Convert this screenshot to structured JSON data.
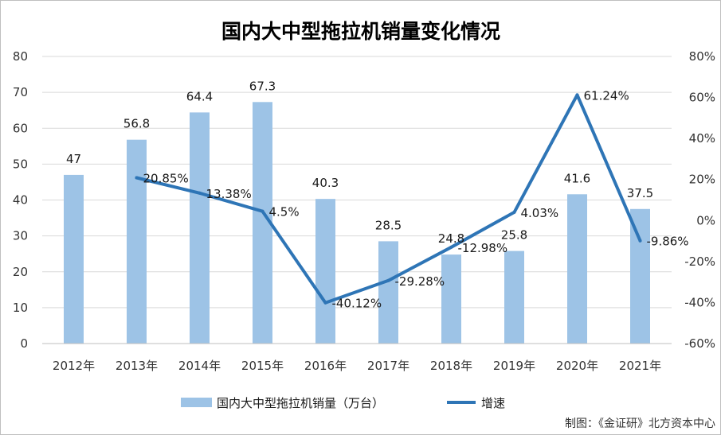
{
  "chart_data": {
    "type": "bar",
    "title": "国内大中型拖拉机销量变化情况",
    "categories": [
      "2012年",
      "2013年",
      "2014年",
      "2015年",
      "2016年",
      "2017年",
      "2018年",
      "2019年",
      "2020年",
      "2021年"
    ],
    "series": [
      {
        "name": "国内大中型拖拉机销量（万台）",
        "type": "bar",
        "axis": "left",
        "values": [
          47,
          56.8,
          64.4,
          67.3,
          40.3,
          28.5,
          24.8,
          25.8,
          41.6,
          37.5
        ],
        "labels": [
          "47",
          "56.8",
          "64.4",
          "67.3",
          "40.3",
          "28.5",
          "24.8",
          "25.8",
          "41.6",
          "37.5"
        ],
        "color": "#9dc3e6"
      },
      {
        "name": "增速",
        "type": "line",
        "axis": "right",
        "values": [
          null,
          20.85,
          13.38,
          4.5,
          -40.12,
          -29.28,
          -12.98,
          4.03,
          61.24,
          -9.86
        ],
        "labels": [
          "",
          "20.85%",
          "13.38%",
          "4.5%",
          "-40.12%",
          "-29.28%",
          "-12.98%",
          "4.03%",
          "61.24%",
          "-9.86%"
        ],
        "color": "#2e75b6"
      }
    ],
    "y_left": {
      "min": 0,
      "max": 80,
      "step": 10,
      "ticks": [
        "0",
        "10",
        "20",
        "30",
        "40",
        "50",
        "60",
        "70",
        "80"
      ]
    },
    "y_right": {
      "min": -60,
      "max": 80,
      "step": 20,
      "ticks": [
        "-60%",
        "-40%",
        "-20%",
        "0%",
        "20%",
        "40%",
        "60%",
        "80%"
      ]
    },
    "grid": true,
    "legend_position": "bottom",
    "source": "制图：《金证研》北方资本中心"
  }
}
